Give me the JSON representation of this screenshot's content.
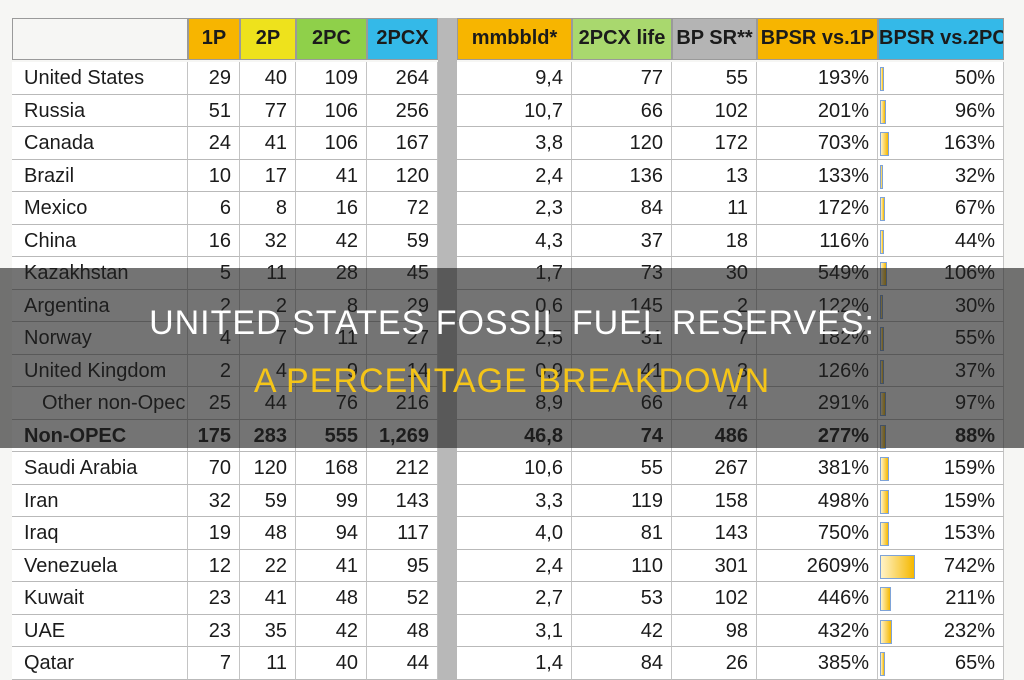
{
  "header": {
    "title": "UNITED STATES FOSSIL FUEL RESERVES:",
    "subtitle": "A PERCENTAGE BREAKDOWN"
  },
  "table": {
    "columns": [
      "1P",
      "2P",
      "2PC",
      "2PCX",
      "mmbbld*",
      "2PCX life",
      "BP SR**",
      "BPSR vs.1P",
      "BPSR vs.2PC"
    ],
    "rows": [
      [
        "United States",
        "29",
        "40",
        "109",
        "264",
        "9,4",
        "77",
        "55",
        "193%",
        "50%"
      ],
      [
        "Russia",
        "51",
        "77",
        "106",
        "256",
        "10,7",
        "66",
        "102",
        "201%",
        "96%"
      ],
      [
        "Canada",
        "24",
        "41",
        "106",
        "167",
        "3,8",
        "120",
        "172",
        "703%",
        "163%"
      ],
      [
        "Brazil",
        "10",
        "17",
        "41",
        "120",
        "2,4",
        "136",
        "13",
        "133%",
        "32%"
      ],
      [
        "Mexico",
        "6",
        "8",
        "16",
        "72",
        "2,3",
        "84",
        "11",
        "172%",
        "67%"
      ],
      [
        "China",
        "16",
        "32",
        "42",
        "59",
        "4,3",
        "37",
        "18",
        "116%",
        "44%"
      ],
      [
        "Kazakhstan",
        "5",
        "11",
        "28",
        "45",
        "1,7",
        "73",
        "30",
        "549%",
        "106%"
      ],
      [
        "Argentina",
        "2",
        "2",
        "8",
        "29",
        "0,6",
        "145",
        "2",
        "122%",
        "30%"
      ],
      [
        "Norway",
        "4",
        "7",
        "11",
        "27",
        "2,5",
        "31",
        "7",
        "182%",
        "55%"
      ],
      [
        "United Kingdom",
        "2",
        "4",
        "9",
        "14",
        "0,9",
        "41",
        "3",
        "126%",
        "37%"
      ],
      [
        "Other non-Opec",
        "25",
        "44",
        "76",
        "216",
        "8,9",
        "66",
        "74",
        "291%",
        "97%"
      ],
      [
        "Non-OPEC",
        "175",
        "283",
        "555",
        "1,269",
        "46,8",
        "74",
        "486",
        "277%",
        "88%"
      ],
      [
        "Saudi Arabia",
        "70",
        "120",
        "168",
        "212",
        "10,6",
        "55",
        "267",
        "381%",
        "159%"
      ],
      [
        "Iran",
        "32",
        "59",
        "99",
        "143",
        "3,3",
        "119",
        "158",
        "498%",
        "159%"
      ],
      [
        "Iraq",
        "19",
        "48",
        "94",
        "117",
        "4,0",
        "81",
        "143",
        "750%",
        "153%"
      ],
      [
        "Venezuela",
        "12",
        "22",
        "41",
        "95",
        "2,4",
        "110",
        "301",
        "2609%",
        "742%"
      ],
      [
        "Kuwait",
        "23",
        "41",
        "48",
        "52",
        "2,7",
        "53",
        "102",
        "446%",
        "211%"
      ],
      [
        "UAE",
        "23",
        "35",
        "42",
        "48",
        "3,1",
        "42",
        "98",
        "432%",
        "232%"
      ],
      [
        "Qatar",
        "7",
        "11",
        "40",
        "44",
        "1,4",
        "84",
        "26",
        "385%",
        "65%"
      ]
    ]
  }
}
